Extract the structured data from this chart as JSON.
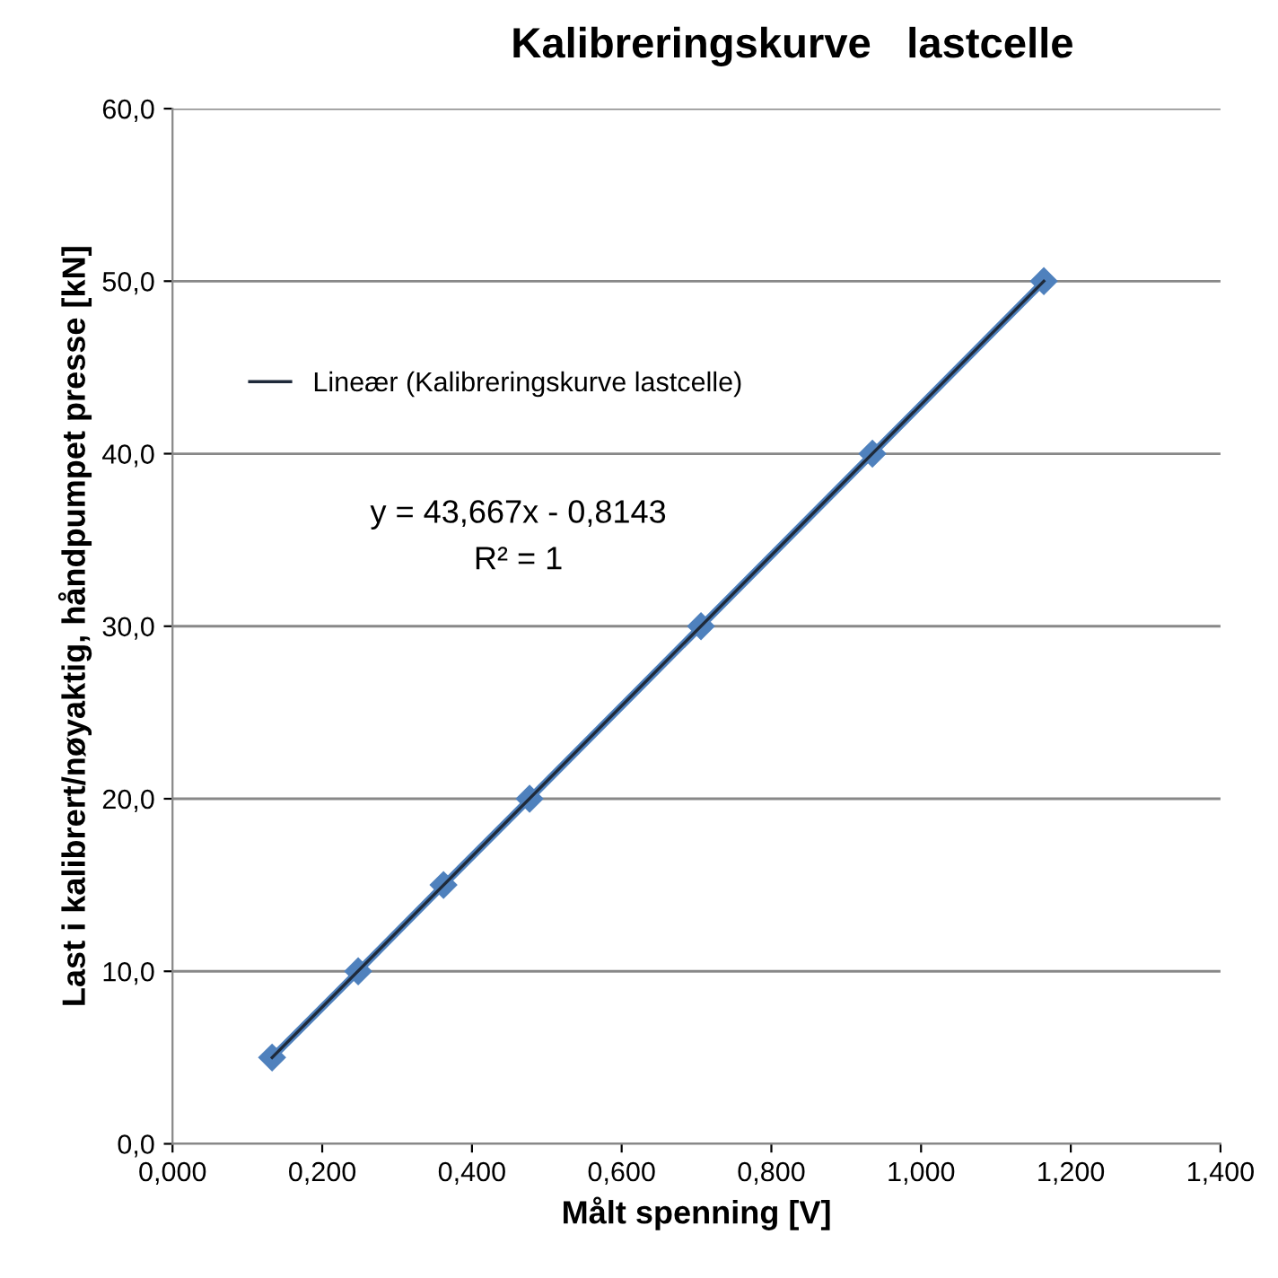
{
  "chart_data": {
    "type": "line",
    "title": "Kalibreringskurve   lastcelle",
    "xlabel": "Målt spenning [V]",
    "ylabel": "Last i kalibrert/nøyaktig, håndpumpet presse [kN]",
    "series": [
      {
        "color": "#4f81bd",
        "marker": "diamond",
        "x": [
          0.133,
          0.248,
          0.362,
          0.477,
          0.706,
          0.935,
          1.164
        ],
        "values": [
          5,
          10,
          15,
          20,
          30,
          40,
          50
        ]
      },
      {
        "name": "Lineær (Kalibreringskurve lastcelle)",
        "color": "#1f2a3a",
        "marker": "none",
        "x": [
          0.133,
          1.164
        ],
        "values": [
          5,
          50
        ]
      }
    ],
    "annotations": [
      "y = 43,667x - 0,8143",
      "R² = 1"
    ],
    "xlim": [
      0,
      1.4
    ],
    "xticks": [
      {
        "value": 0,
        "label": "0,000"
      },
      {
        "value": 0.2,
        "label": "0,200"
      },
      {
        "value": 0.4,
        "label": "0,400"
      },
      {
        "value": 0.6,
        "label": "0,600"
      },
      {
        "value": 0.8,
        "label": "0,800"
      },
      {
        "value": 1.0,
        "label": "1,000"
      },
      {
        "value": 1.2,
        "label": "1,200"
      },
      {
        "value": 1.4,
        "label": "1,400"
      }
    ],
    "ylim": [
      0,
      60
    ],
    "yticks": [
      {
        "value": 0,
        "label": "0,0"
      },
      {
        "value": 10,
        "label": "10,0"
      },
      {
        "value": 20,
        "label": "20,0"
      },
      {
        "value": 30,
        "label": "30,0"
      },
      {
        "value": 40,
        "label": "40,0"
      },
      {
        "value": 50,
        "label": "50,0"
      },
      {
        "value": 60,
        "label": "60,0"
      }
    ],
    "grid": "y",
    "legend": "top left"
  }
}
